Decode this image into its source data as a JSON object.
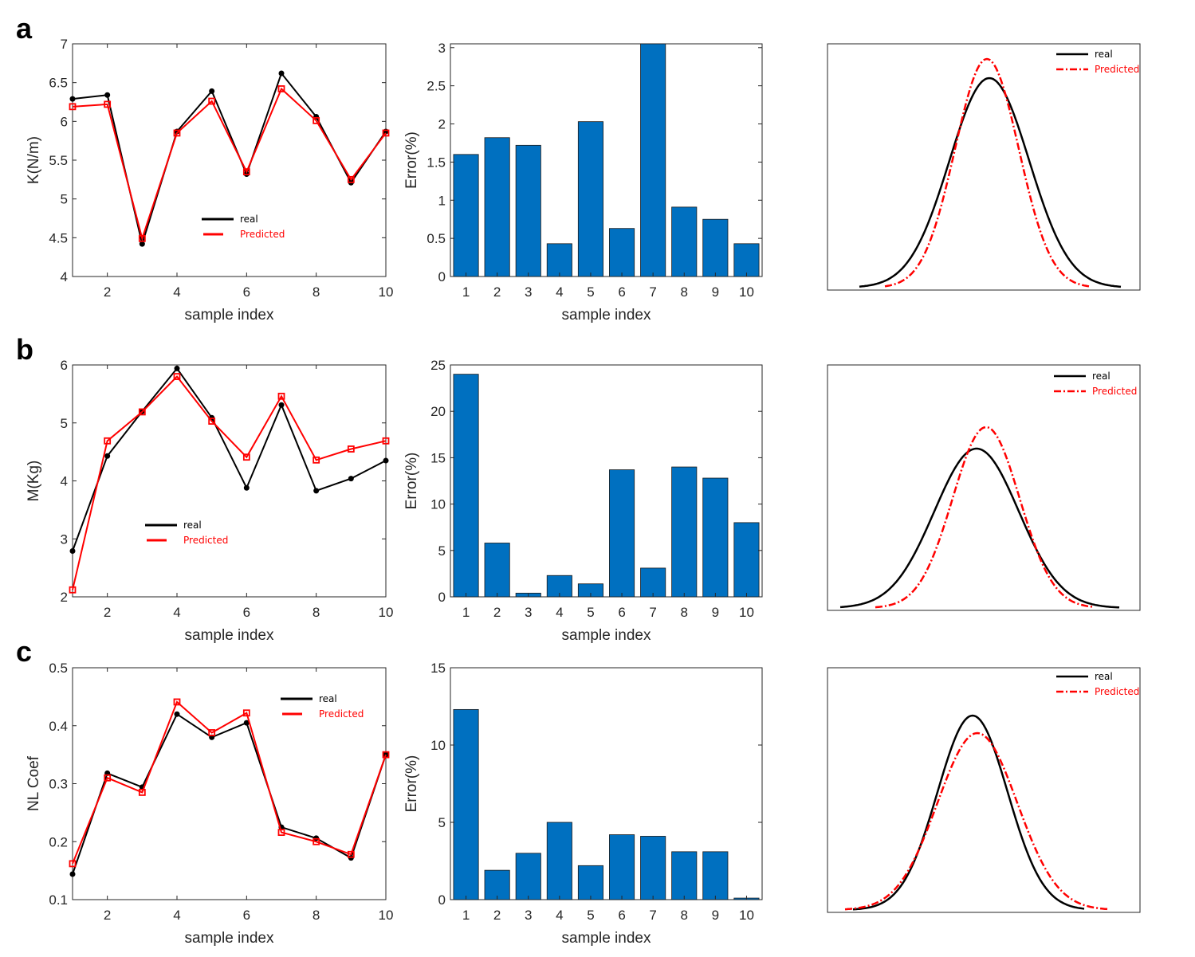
{
  "panel_labels": [
    "a",
    "b",
    "c"
  ],
  "colors": {
    "real": "#000000",
    "predicted": "#ff0000",
    "bar": "#0070c0",
    "axis": "#262626"
  },
  "chart_data": [
    {
      "type": "line",
      "panel": "a",
      "xlabel": "sample index",
      "ylabel": "K(N/m)",
      "xlim": [
        1,
        10
      ],
      "ylim": [
        4,
        7
      ],
      "xticks": [
        "2",
        "4",
        "6",
        "8",
        "10"
      ],
      "yticks": [
        "4",
        "4.5",
        "5",
        "5.5",
        "6",
        "6.5",
        "7"
      ],
      "x": [
        1,
        2,
        3,
        4,
        5,
        6,
        7,
        8,
        9,
        10
      ],
      "legend_position": "center",
      "series": [
        {
          "name": "real",
          "values": [
            6.29,
            6.34,
            4.42,
            5.87,
            6.39,
            5.32,
            6.62,
            6.06,
            5.21,
            5.87
          ]
        },
        {
          "name": "Predicted",
          "values": [
            6.19,
            6.22,
            4.49,
            5.85,
            6.26,
            5.35,
            6.42,
            6.01,
            5.25,
            5.85
          ]
        }
      ]
    },
    {
      "type": "bar",
      "panel": "a",
      "xlabel": "sample index",
      "ylabel": "Error(%)",
      "categories": [
        "1",
        "2",
        "3",
        "4",
        "5",
        "6",
        "7",
        "8",
        "9",
        "10"
      ],
      "ylim": [
        0,
        3.05
      ],
      "yticks": [
        "0",
        "0.5",
        "1",
        "1.5",
        "2",
        "2.5",
        "3"
      ],
      "values": [
        1.6,
        1.82,
        1.72,
        0.43,
        2.03,
        0.63,
        3.05,
        0.91,
        0.75,
        0.43
      ]
    },
    {
      "type": "line",
      "panel": "a",
      "description_free": true,
      "legend_position": "top-right",
      "series": [
        {
          "name": "real",
          "style": "solid"
        },
        {
          "name": "Predicted",
          "style": "dash-dot"
        }
      ]
    },
    {
      "type": "line",
      "panel": "b",
      "xlabel": "sample index",
      "ylabel": "M(Kg)",
      "xlim": [
        1,
        10
      ],
      "ylim": [
        2,
        6
      ],
      "xticks": [
        "2",
        "4",
        "6",
        "8",
        "10"
      ],
      "yticks": [
        "2",
        "3",
        "4",
        "5",
        "6"
      ],
      "x": [
        1,
        2,
        3,
        4,
        5,
        6,
        7,
        8,
        9,
        10
      ],
      "legend_position": "center-left",
      "series": [
        {
          "name": "real",
          "values": [
            2.79,
            4.43,
            5.2,
            5.94,
            5.09,
            3.88,
            5.31,
            3.83,
            4.04,
            4.35
          ]
        },
        {
          "name": "Predicted",
          "values": [
            2.12,
            4.69,
            5.19,
            5.8,
            5.03,
            4.41,
            5.46,
            4.36,
            4.55,
            4.69
          ]
        }
      ]
    },
    {
      "type": "bar",
      "panel": "b",
      "xlabel": "sample index",
      "ylabel": "Error(%)",
      "categories": [
        "1",
        "2",
        "3",
        "4",
        "5",
        "6",
        "7",
        "8",
        "9",
        "10"
      ],
      "ylim": [
        0,
        25
      ],
      "yticks": [
        "0",
        "5",
        "10",
        "15",
        "20",
        "25"
      ],
      "values": [
        24,
        5.8,
        0.4,
        2.3,
        1.4,
        13.7,
        3.1,
        14,
        12.8,
        8
      ]
    },
    {
      "type": "line",
      "panel": "b",
      "legend_position": "top-right",
      "series": [
        {
          "name": "real",
          "style": "solid"
        },
        {
          "name": "Predicted",
          "style": "dash-dot"
        }
      ]
    },
    {
      "type": "line",
      "panel": "c",
      "xlabel": "sample index",
      "ylabel": "NL Coef",
      "xlim": [
        1,
        10
      ],
      "ylim": [
        0.1,
        0.5
      ],
      "xticks": [
        "2",
        "4",
        "6",
        "8",
        "10"
      ],
      "yticks": [
        "0.1",
        "0.2",
        "0.3",
        "0.4",
        "0.5"
      ],
      "x": [
        1,
        2,
        3,
        4,
        5,
        6,
        7,
        8,
        9,
        10
      ],
      "legend_position": "top-right",
      "series": [
        {
          "name": "real",
          "values": [
            0.144,
            0.318,
            0.294,
            0.42,
            0.38,
            0.405,
            0.225,
            0.206,
            0.172,
            0.35
          ]
        },
        {
          "name": "Predicted",
          "values": [
            0.162,
            0.31,
            0.285,
            0.441,
            0.388,
            0.422,
            0.216,
            0.2,
            0.178,
            0.35
          ]
        }
      ]
    },
    {
      "type": "bar",
      "panel": "c",
      "xlabel": "sample index",
      "ylabel": "Error(%)",
      "categories": [
        "1",
        "2",
        "3",
        "4",
        "5",
        "6",
        "7",
        "8",
        "9",
        "10"
      ],
      "ylim": [
        0,
        15
      ],
      "yticks": [
        "0",
        "5",
        "10",
        "15"
      ],
      "values": [
        12.3,
        1.9,
        3.0,
        5.0,
        2.2,
        4.2,
        4.1,
        3.1,
        3.1,
        0.1
      ]
    },
    {
      "type": "line",
      "panel": "c",
      "legend_position": "top-right",
      "series": [
        {
          "name": "real",
          "style": "solid"
        },
        {
          "name": "Predicted",
          "style": "dash-dot"
        }
      ]
    }
  ]
}
